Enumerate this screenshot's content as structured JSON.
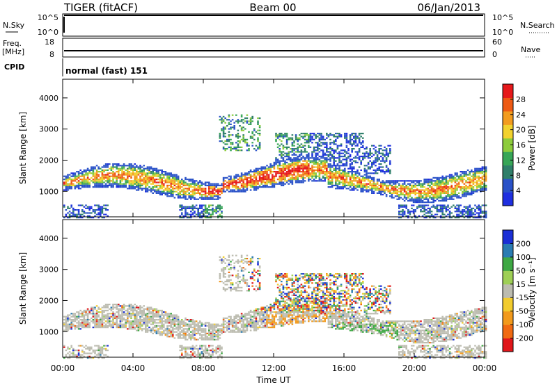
{
  "header": {
    "station": "TIGER (fitACF)",
    "beam": "Beam 00",
    "date": "06/Jan/2013"
  },
  "strips": {
    "nsky_label": "N.Sky",
    "nsky_ticks": [
      "10^5",
      "10^0"
    ],
    "nsearch_label": "N.Search",
    "nsearch_ticks": [
      "10^5",
      "10^0"
    ],
    "freq_label": "Freq.",
    "freq_unit": "[MHz]",
    "freq_ticks": [
      "18",
      "8"
    ],
    "nave_label": "Nave",
    "nave_ticks": [
      "60",
      "0"
    ],
    "cpid_label": "CPID",
    "cpid_value": "normal (fast) 151"
  },
  "x_axis": {
    "ticks": [
      "00:00",
      "04:00",
      "08:00",
      "12:00",
      "16:00",
      "20:00",
      "00:00"
    ],
    "label": "Time UT"
  },
  "colors": {
    "power": [
      "#1f2fe0",
      "#2a52c8",
      "#2f7f6a",
      "#37a657",
      "#8dcc3c",
      "#f2d22e",
      "#f39c1f",
      "#ee5a14",
      "#e6191b"
    ],
    "velocity": [
      "#e0161a",
      "#f06a12",
      "#f29a1c",
      "#f2cc2e",
      "#bcbcb0",
      "#9ecf55",
      "#3ea844",
      "#2a7cb2",
      "#1b2fd6"
    ]
  },
  "chart_data": [
    {
      "type": "heatmap",
      "panel": "power",
      "ylabel": "Slant Range [km]",
      "yticks": [
        "4000",
        "3000",
        "2000",
        "1000"
      ],
      "ylim": [
        180,
        4600
      ],
      "xlim_hours": [
        0,
        24
      ],
      "colorbar_label": "Power [dB]",
      "colorbar_ticks": [
        "28",
        "24",
        "20",
        "16",
        "12",
        "8",
        "4"
      ]
    },
    {
      "type": "heatmap",
      "panel": "velocity",
      "ylabel": "Slant Range [km]",
      "yticks": [
        "4000",
        "3000",
        "2000",
        "1000"
      ],
      "ylim": [
        180,
        4600
      ],
      "xlim_hours": [
        0,
        24
      ],
      "colorbar_label": "Velocity [m s⁻¹]",
      "colorbar_ticks": [
        "200",
        "100",
        "50",
        "15",
        "-15",
        "-50",
        "-100",
        "-200"
      ]
    }
  ]
}
